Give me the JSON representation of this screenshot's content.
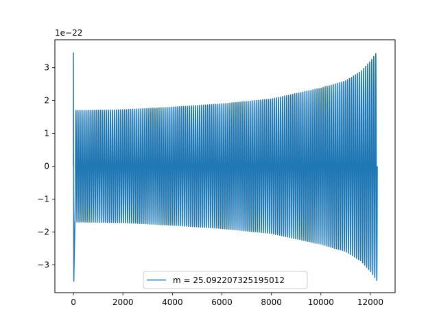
{
  "chart_data": {
    "type": "line",
    "title": "",
    "xlabel": "",
    "ylabel": "",
    "xlim": [
      -750,
      13000
    ],
    "ylim": [
      -3.85,
      3.85
    ],
    "y_offset_label": "1e−22",
    "x_ticks": [
      0,
      2000,
      4000,
      6000,
      8000,
      10000,
      12000
    ],
    "x_tick_labels": [
      "0",
      "2000",
      "4000",
      "6000",
      "8000",
      "10000",
      "12000"
    ],
    "y_ticks": [
      -3,
      -2,
      -1,
      0,
      1,
      2,
      3
    ],
    "y_tick_labels": [
      "−3",
      "−2",
      "−1",
      "0",
      "1",
      "2",
      "3"
    ],
    "grid": false,
    "legend_position": "lower center",
    "series": [
      {
        "name": "m = 25.092207325195012",
        "color": "#1f77b4",
        "x_start": 0,
        "x_end": 12280,
        "cycles": 150,
        "spike_x": 0,
        "spike_max": 3.45,
        "spike_min": -3.5,
        "envelope": {
          "x": [
            80,
            2000,
            4000,
            6000,
            8000,
            10000,
            11000,
            11600,
            12000,
            12280
          ],
          "amplitude": [
            1.7,
            1.72,
            1.8,
            1.9,
            2.05,
            2.38,
            2.6,
            2.88,
            3.2,
            3.5
          ]
        }
      }
    ]
  }
}
